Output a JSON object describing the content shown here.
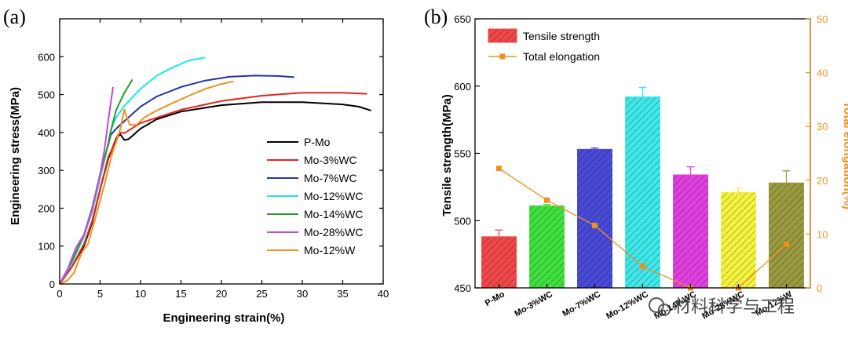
{
  "chart_data": [
    {
      "type": "line",
      "panel_label": "(a)",
      "xlabel": "Engineering strain(%)",
      "ylabel": "Engineering stress(MPa)",
      "xlim": [
        0,
        40
      ],
      "ylim": [
        0,
        700
      ],
      "xticks": [
        0,
        5,
        10,
        15,
        20,
        25,
        30,
        35,
        40
      ],
      "yticks": [
        0,
        100,
        200,
        300,
        400,
        500,
        600
      ],
      "legend_position": "lower-right",
      "series": [
        {
          "name": "P-Mo",
          "color": "#000000",
          "points": [
            [
              0,
              0
            ],
            [
              1.5,
              45
            ],
            [
              3,
              100
            ],
            [
              4,
              160
            ],
            [
              5,
              250
            ],
            [
              6,
              330
            ],
            [
              7,
              385
            ],
            [
              7.5,
              395
            ],
            [
              8,
              380
            ],
            [
              8.5,
              382
            ],
            [
              10,
              410
            ],
            [
              12,
              435
            ],
            [
              15,
              455
            ],
            [
              20,
              472
            ],
            [
              25,
              480
            ],
            [
              30,
              480
            ],
            [
              35,
              474
            ],
            [
              37,
              468
            ],
            [
              38.5,
              458
            ]
          ]
        },
        {
          "name": "Mo-3%WC",
          "color": "#e8231c",
          "points": [
            [
              0,
              0
            ],
            [
              1.5,
              45
            ],
            [
              3,
              105
            ],
            [
              4,
              165
            ],
            [
              5,
              250
            ],
            [
              6,
              335
            ],
            [
              6.8,
              370
            ],
            [
              7.2,
              393
            ],
            [
              7.5,
              400
            ],
            [
              8,
              398
            ],
            [
              10,
              425
            ],
            [
              15,
              460
            ],
            [
              20,
              483
            ],
            [
              25,
              497
            ],
            [
              30,
              505
            ],
            [
              35,
              505
            ],
            [
              38,
              502
            ]
          ]
        },
        {
          "name": "Mo-7%WC",
          "color": "#2434a8",
          "points": [
            [
              0,
              0
            ],
            [
              1.5,
              55
            ],
            [
              3,
              125
            ],
            [
              4,
              190
            ],
            [
              5,
              280
            ],
            [
              5.8,
              350
            ],
            [
              6.3,
              393
            ],
            [
              7,
              410
            ],
            [
              8,
              430
            ],
            [
              10,
              468
            ],
            [
              12,
              495
            ],
            [
              15,
              520
            ],
            [
              18,
              537
            ],
            [
              21,
              547
            ],
            [
              24,
              550
            ],
            [
              27,
              549
            ],
            [
              29,
              546
            ]
          ]
        },
        {
          "name": "Mo-12%WC",
          "color": "#1de6ea",
          "points": [
            [
              0,
              0
            ],
            [
              1.5,
              55
            ],
            [
              3,
              125
            ],
            [
              4,
              190
            ],
            [
              5,
              280
            ],
            [
              5.8,
              350
            ],
            [
              6.3,
              405
            ],
            [
              7,
              440
            ],
            [
              8,
              470
            ],
            [
              10,
              515
            ],
            [
              12,
              550
            ],
            [
              14,
              572
            ],
            [
              16,
              590
            ],
            [
              18,
              598
            ]
          ]
        },
        {
          "name": "Mo-14%WC",
          "color": "#2a9b2a",
          "points": [
            [
              0,
              0
            ],
            [
              1.5,
              60
            ],
            [
              3,
              130
            ],
            [
              4,
              200
            ],
            [
              5,
              290
            ],
            [
              6,
              370
            ],
            [
              6.5,
              420
            ],
            [
              7,
              460
            ],
            [
              8,
              505
            ],
            [
              9,
              540
            ]
          ]
        },
        {
          "name": "Mo-28%WC",
          "color": "#cc44dd",
          "points": [
            [
              0,
              0
            ],
            [
              1,
              40
            ],
            [
              2,
              95
            ],
            [
              3,
              130
            ],
            [
              4,
              195
            ],
            [
              5,
              290
            ],
            [
              5.5,
              350
            ],
            [
              6,
              430
            ],
            [
              6.4,
              490
            ],
            [
              6.6,
              520
            ]
          ]
        },
        {
          "name": "Mo-12%W",
          "color": "#f0901e",
          "points": [
            [
              0,
              0
            ],
            [
              1,
              10
            ],
            [
              1.8,
              30
            ],
            [
              2.3,
              60
            ],
            [
              2.8,
              85
            ],
            [
              3.5,
              105
            ],
            [
              4.5,
              180
            ],
            [
              5.5,
              260
            ],
            [
              6.5,
              345
            ],
            [
              7,
              375
            ],
            [
              7.5,
              410
            ],
            [
              7.8,
              440
            ],
            [
              8,
              460
            ],
            [
              8.3,
              440
            ],
            [
              8.7,
              420
            ],
            [
              9.5,
              420
            ],
            [
              10.5,
              440
            ],
            [
              12,
              458
            ],
            [
              14,
              478
            ],
            [
              16,
              497
            ],
            [
              18,
              515
            ],
            [
              20,
              528
            ],
            [
              21.5,
              535
            ]
          ]
        }
      ]
    },
    {
      "type": "bar",
      "panel_label": "(b)",
      "categories": [
        "P-Mo",
        "Mo-3%WC",
        "Mo-7%WC",
        "Mo-12%WC",
        "Mo-14%WC",
        "Mo-28%WC",
        "Mo-12%W"
      ],
      "ylabel": "Tensile strength(MPa)",
      "y2label": "Total elongation(%)",
      "ylim": [
        450,
        650
      ],
      "y2lim": [
        0,
        50
      ],
      "yticks": [
        450,
        500,
        550,
        600,
        650
      ],
      "y2ticks": [
        0,
        10,
        20,
        30,
        40,
        50
      ],
      "legend_position": "top-left",
      "series": [
        {
          "name": "Tensile strength",
          "axis": "left",
          "style": "hatched bars",
          "values": [
            488,
            511,
            553,
            592,
            534,
            521,
            528
          ],
          "errors": [
            5,
            1,
            1,
            7,
            6,
            3,
            9
          ],
          "colors": [
            "#f04848",
            "#40e040",
            "#4a4ad8",
            "#40e8ea",
            "#e040e0",
            "#f4f440",
            "#9a9a40"
          ]
        },
        {
          "name": "Total elongation",
          "axis": "right",
          "style": "line with square markers",
          "color": "#f0901e",
          "values": [
            22.2,
            16.3,
            11.6,
            4.0,
            0.0,
            0.0,
            8.1
          ]
        }
      ]
    }
  ],
  "watermark": "材料科学与工程"
}
